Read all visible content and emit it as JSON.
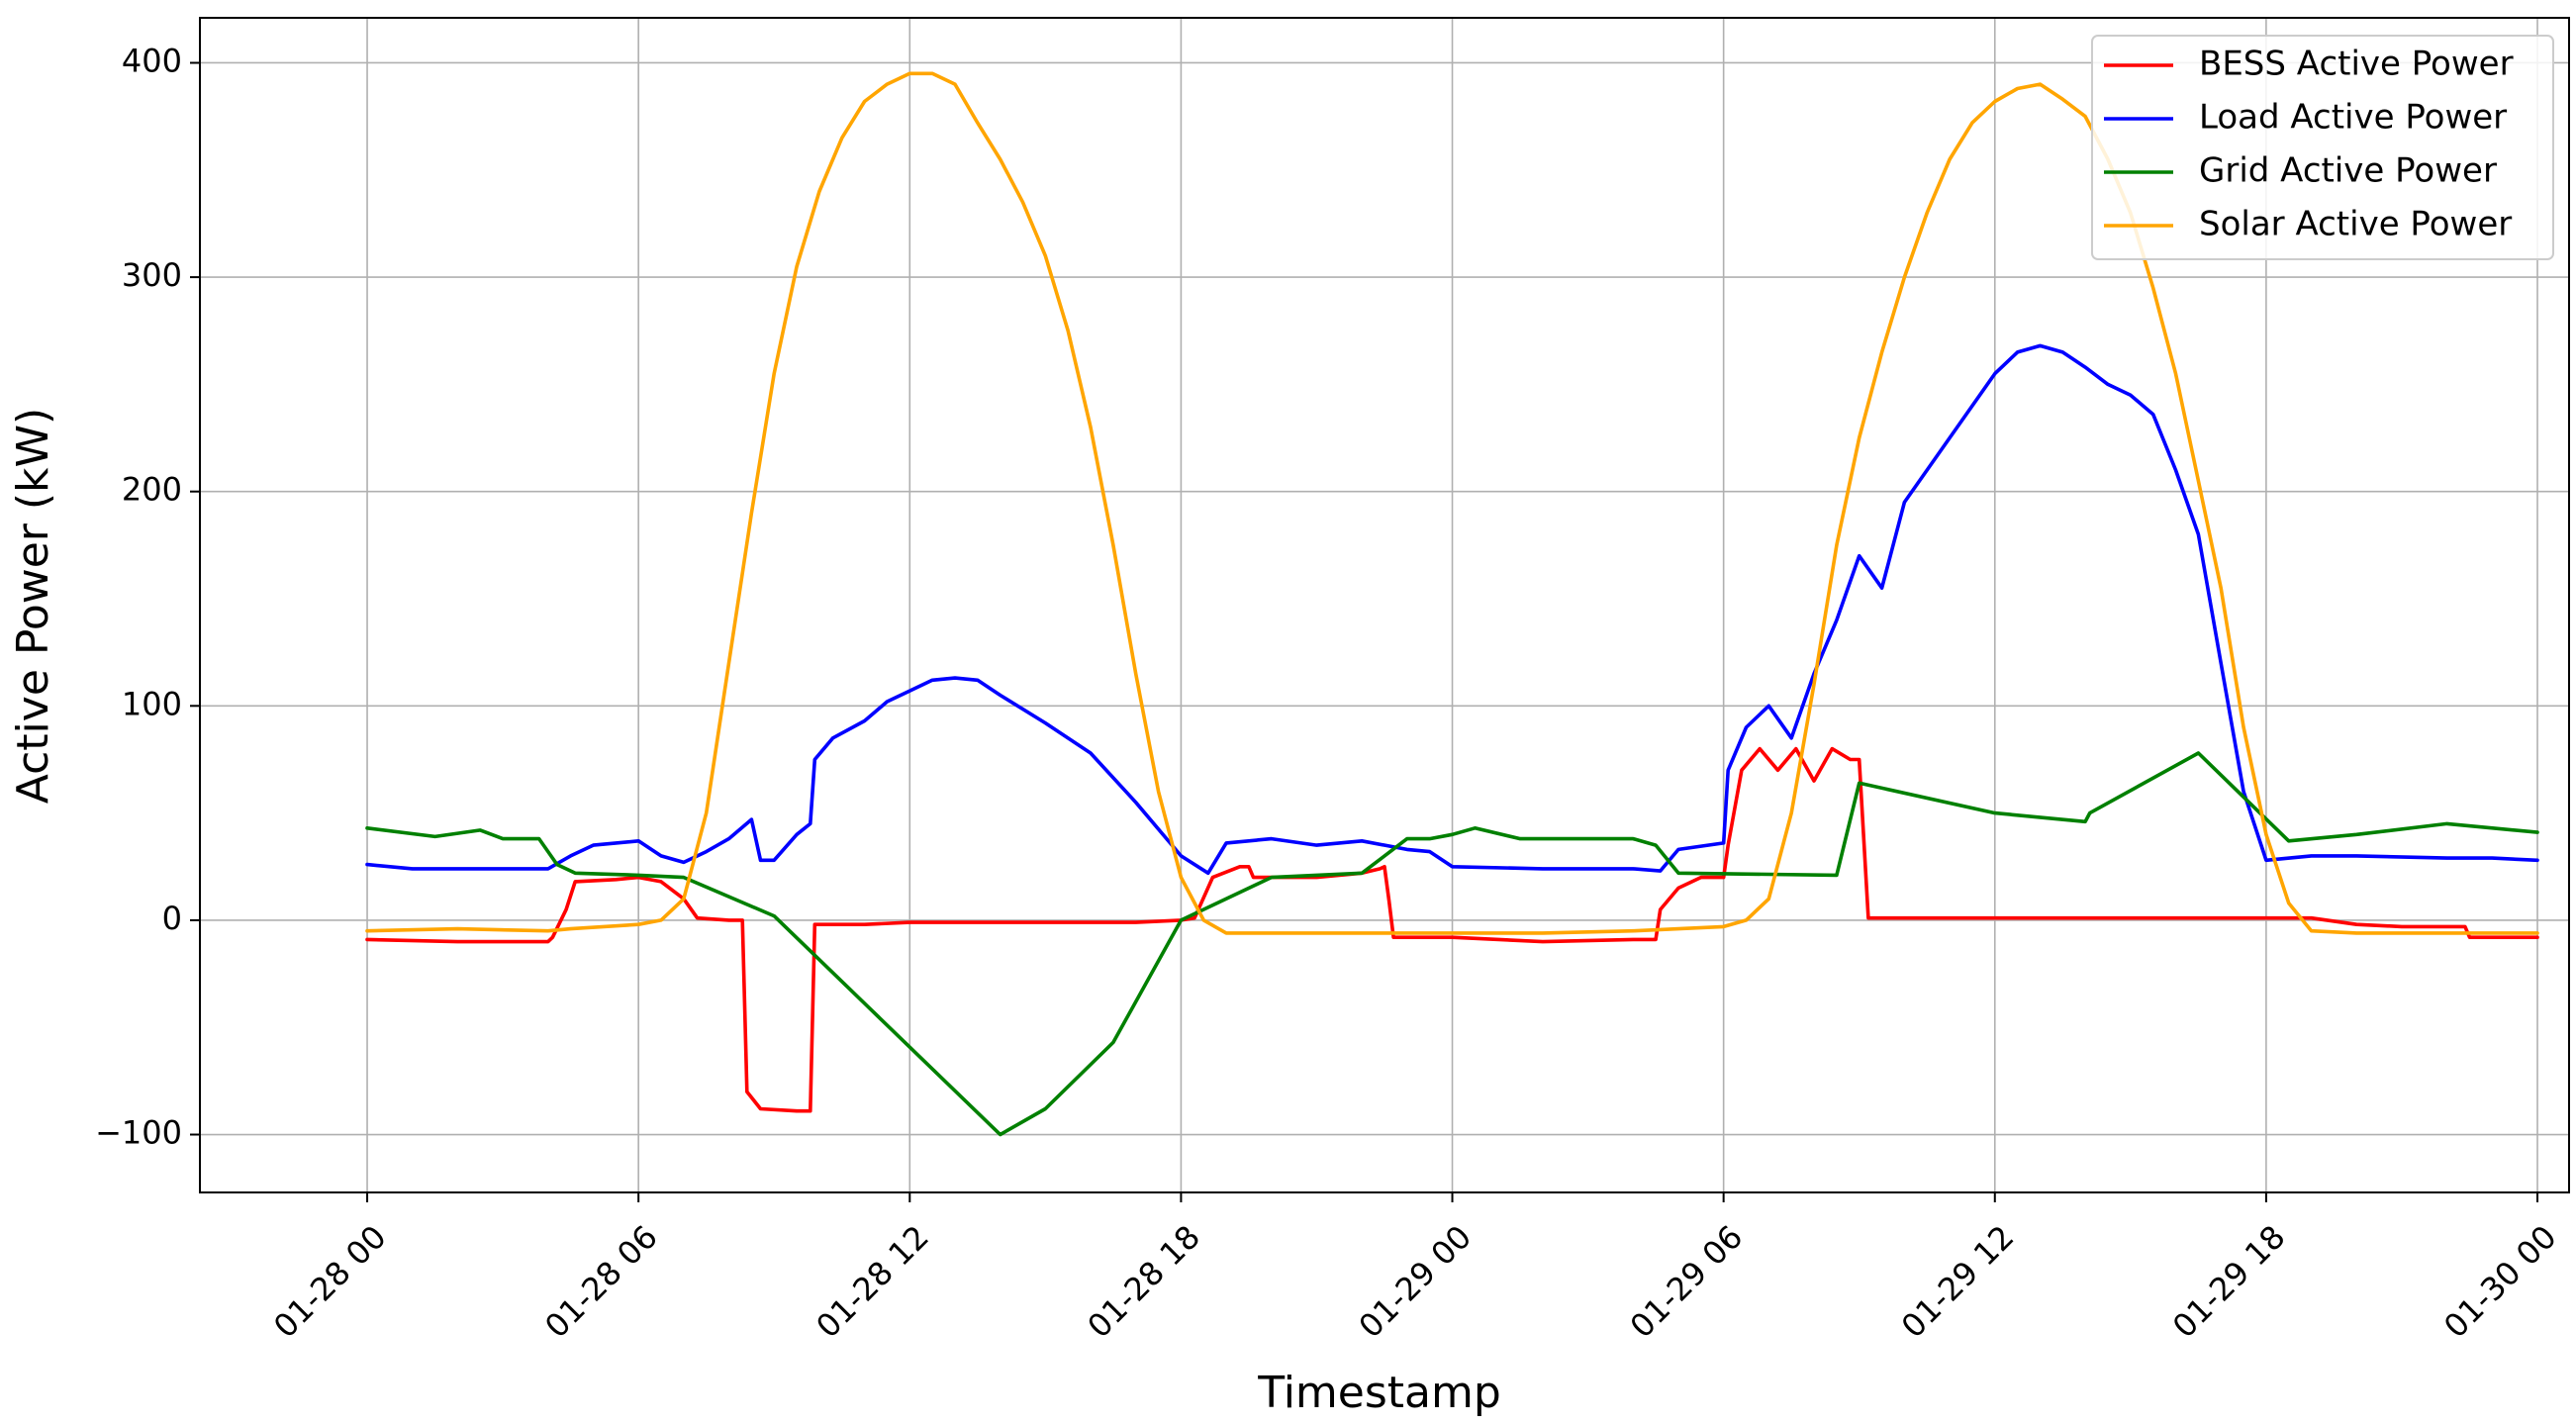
{
  "chart_data": {
    "type": "line",
    "title": "",
    "xlabel": "Timestamp",
    "ylabel": "Active Power (kW)",
    "x_unit": "hours since 01-28 00:00",
    "xlim": [
      -3.7,
      48.7
    ],
    "ylim": [
      -127,
      421
    ],
    "grid": true,
    "legend_position": "top-right",
    "x_ticks": [
      {
        "value": 0,
        "label": "01-28 00"
      },
      {
        "value": 6,
        "label": "01-28 06"
      },
      {
        "value": 12,
        "label": "01-28 12"
      },
      {
        "value": 18,
        "label": "01-28 18"
      },
      {
        "value": 24,
        "label": "01-29 00"
      },
      {
        "value": 30,
        "label": "01-29 06"
      },
      {
        "value": 36,
        "label": "01-29 12"
      },
      {
        "value": 42,
        "label": "01-29 18"
      },
      {
        "value": 48,
        "label": "01-30 00"
      }
    ],
    "y_ticks": [
      {
        "value": -100,
        "label": "−100"
      },
      {
        "value": 0,
        "label": "0"
      },
      {
        "value": 100,
        "label": "100"
      },
      {
        "value": 200,
        "label": "200"
      },
      {
        "value": 300,
        "label": "300"
      },
      {
        "value": 400,
        "label": "400"
      }
    ],
    "series": [
      {
        "name": "BESS Active Power",
        "color": "#ff0000",
        "points": [
          [
            0,
            -9
          ],
          [
            2,
            -10
          ],
          [
            4,
            -10
          ],
          [
            4.1,
            -8
          ],
          [
            4.4,
            5
          ],
          [
            4.6,
            18
          ],
          [
            5.5,
            19
          ],
          [
            6,
            20
          ],
          [
            6.5,
            18
          ],
          [
            7,
            10
          ],
          [
            7.3,
            1
          ],
          [
            8,
            0
          ],
          [
            8.3,
            0
          ],
          [
            8.4,
            -80
          ],
          [
            8.7,
            -88
          ],
          [
            9.5,
            -89
          ],
          [
            9.8,
            -89
          ],
          [
            9.9,
            -2
          ],
          [
            11,
            -2
          ],
          [
            12,
            -1
          ],
          [
            14,
            -1
          ],
          [
            16,
            -1
          ],
          [
            17,
            -1
          ],
          [
            18,
            0
          ],
          [
            18.3,
            1
          ],
          [
            18.7,
            20
          ],
          [
            19.3,
            25
          ],
          [
            19.5,
            25
          ],
          [
            19.6,
            20
          ],
          [
            21,
            20
          ],
          [
            22,
            22
          ],
          [
            22.4,
            24
          ],
          [
            22.5,
            25
          ],
          [
            22.6,
            9
          ],
          [
            22.7,
            -8
          ],
          [
            24,
            -8
          ],
          [
            26,
            -10
          ],
          [
            28,
            -9
          ],
          [
            28.5,
            -9
          ],
          [
            28.6,
            5
          ],
          [
            29,
            15
          ],
          [
            29.5,
            20
          ],
          [
            30,
            20
          ],
          [
            30.1,
            35
          ],
          [
            30.4,
            70
          ],
          [
            30.8,
            80
          ],
          [
            31.2,
            70
          ],
          [
            31.6,
            80
          ],
          [
            32,
            65
          ],
          [
            32.4,
            80
          ],
          [
            32.8,
            75
          ],
          [
            33,
            75
          ],
          [
            33.2,
            1
          ],
          [
            34,
            1
          ],
          [
            38,
            1
          ],
          [
            40,
            1
          ],
          [
            42,
            1
          ],
          [
            43,
            1
          ],
          [
            44,
            -2
          ],
          [
            45,
            -3
          ],
          [
            46,
            -3
          ],
          [
            46.4,
            -3
          ],
          [
            46.5,
            -8
          ],
          [
            48,
            -8
          ]
        ]
      },
      {
        "name": "Load Active Power",
        "color": "#0000ff",
        "points": [
          [
            0,
            26
          ],
          [
            1,
            24
          ],
          [
            2,
            24
          ],
          [
            3,
            24
          ],
          [
            4,
            24
          ],
          [
            4.5,
            30
          ],
          [
            5,
            35
          ],
          [
            6,
            37
          ],
          [
            6.5,
            30
          ],
          [
            7,
            27
          ],
          [
            7.5,
            32
          ],
          [
            8,
            38
          ],
          [
            8.5,
            47
          ],
          [
            8.7,
            28
          ],
          [
            9,
            28
          ],
          [
            9.5,
            40
          ],
          [
            9.8,
            45
          ],
          [
            9.9,
            75
          ],
          [
            10.3,
            85
          ],
          [
            11,
            93
          ],
          [
            11.5,
            102
          ],
          [
            12,
            107
          ],
          [
            12.5,
            112
          ],
          [
            13,
            113
          ],
          [
            13.5,
            112
          ],
          [
            14,
            105
          ],
          [
            15,
            92
          ],
          [
            16,
            78
          ],
          [
            17,
            55
          ],
          [
            18,
            30
          ],
          [
            18.6,
            22
          ],
          [
            19,
            36
          ],
          [
            20,
            38
          ],
          [
            21,
            35
          ],
          [
            22,
            37
          ],
          [
            23,
            33
          ],
          [
            23.5,
            32
          ],
          [
            24,
            25
          ],
          [
            26,
            24
          ],
          [
            28,
            24
          ],
          [
            28.6,
            23
          ],
          [
            29,
            33
          ],
          [
            30,
            36
          ],
          [
            30.1,
            70
          ],
          [
            30.5,
            90
          ],
          [
            31,
            100
          ],
          [
            31.5,
            85
          ],
          [
            32,
            115
          ],
          [
            32.5,
            140
          ],
          [
            33,
            170
          ],
          [
            33.5,
            155
          ],
          [
            34,
            195
          ],
          [
            35,
            225
          ],
          [
            36,
            255
          ],
          [
            36.5,
            265
          ],
          [
            37,
            268
          ],
          [
            37.5,
            265
          ],
          [
            38,
            258
          ],
          [
            38.5,
            250
          ],
          [
            39,
            245
          ],
          [
            39.5,
            236
          ],
          [
            40,
            210
          ],
          [
            40.5,
            180
          ],
          [
            41,
            120
          ],
          [
            41.5,
            60
          ],
          [
            42,
            28
          ],
          [
            43,
            30
          ],
          [
            44,
            30
          ],
          [
            46,
            29
          ],
          [
            47,
            29
          ],
          [
            48,
            28
          ]
        ]
      },
      {
        "name": "Grid Active Power",
        "color": "#008000",
        "points": [
          [
            0,
            43
          ],
          [
            1.5,
            39
          ],
          [
            2.5,
            42
          ],
          [
            3,
            38
          ],
          [
            3.8,
            38
          ],
          [
            4.2,
            26
          ],
          [
            4.6,
            22
          ],
          [
            6,
            21
          ],
          [
            7,
            20
          ],
          [
            9,
            2
          ],
          [
            14,
            -100
          ],
          [
            15,
            -88
          ],
          [
            16.5,
            -57
          ],
          [
            18,
            0
          ],
          [
            20,
            20
          ],
          [
            22,
            22
          ],
          [
            23,
            38
          ],
          [
            23.5,
            38
          ],
          [
            24,
            40
          ],
          [
            24.5,
            43
          ],
          [
            25.5,
            38
          ],
          [
            28,
            38
          ],
          [
            28.5,
            35
          ],
          [
            29,
            22
          ],
          [
            32.5,
            21
          ],
          [
            33,
            64
          ],
          [
            36,
            50
          ],
          [
            38,
            46
          ],
          [
            38.1,
            50
          ],
          [
            40.5,
            78
          ],
          [
            42.5,
            37
          ],
          [
            44,
            40
          ],
          [
            46,
            45
          ],
          [
            48,
            41
          ]
        ]
      },
      {
        "name": "Solar Active Power",
        "color": "#ffa500",
        "points": [
          [
            0,
            -5
          ],
          [
            2,
            -4
          ],
          [
            4,
            -5
          ],
          [
            4.5,
            -4
          ],
          [
            6,
            -2
          ],
          [
            6.5,
            0
          ],
          [
            7,
            10
          ],
          [
            7.5,
            50
          ],
          [
            8,
            120
          ],
          [
            8.5,
            190
          ],
          [
            9,
            255
          ],
          [
            9.5,
            305
          ],
          [
            10,
            340
          ],
          [
            10.5,
            365
          ],
          [
            11,
            382
          ],
          [
            11.5,
            390
          ],
          [
            12,
            395
          ],
          [
            12.5,
            395
          ],
          [
            13,
            390
          ],
          [
            13.5,
            372
          ],
          [
            14,
            355
          ],
          [
            14.5,
            335
          ],
          [
            15,
            310
          ],
          [
            15.5,
            275
          ],
          [
            16,
            230
          ],
          [
            16.5,
            175
          ],
          [
            17,
            115
          ],
          [
            17.5,
            60
          ],
          [
            18,
            20
          ],
          [
            18.5,
            0
          ],
          [
            19,
            -6
          ],
          [
            20,
            -6
          ],
          [
            22,
            -6
          ],
          [
            24,
            -6
          ],
          [
            26,
            -6
          ],
          [
            28,
            -5
          ],
          [
            29,
            -4
          ],
          [
            30,
            -3
          ],
          [
            30.5,
            0
          ],
          [
            31,
            10
          ],
          [
            31.5,
            50
          ],
          [
            32,
            110
          ],
          [
            32.5,
            175
          ],
          [
            33,
            225
          ],
          [
            33.5,
            265
          ],
          [
            34,
            300
          ],
          [
            34.5,
            330
          ],
          [
            35,
            355
          ],
          [
            35.5,
            372
          ],
          [
            36,
            382
          ],
          [
            36.5,
            388
          ],
          [
            37,
            390
          ],
          [
            37.5,
            383
          ],
          [
            38,
            375
          ],
          [
            38.5,
            355
          ],
          [
            39,
            330
          ],
          [
            39.5,
            295
          ],
          [
            40,
            255
          ],
          [
            40.5,
            205
          ],
          [
            41,
            155
          ],
          [
            41.5,
            90
          ],
          [
            42,
            40
          ],
          [
            42.5,
            8
          ],
          [
            43,
            -5
          ],
          [
            44,
            -6
          ],
          [
            46,
            -6
          ],
          [
            48,
            -6
          ]
        ]
      }
    ]
  }
}
